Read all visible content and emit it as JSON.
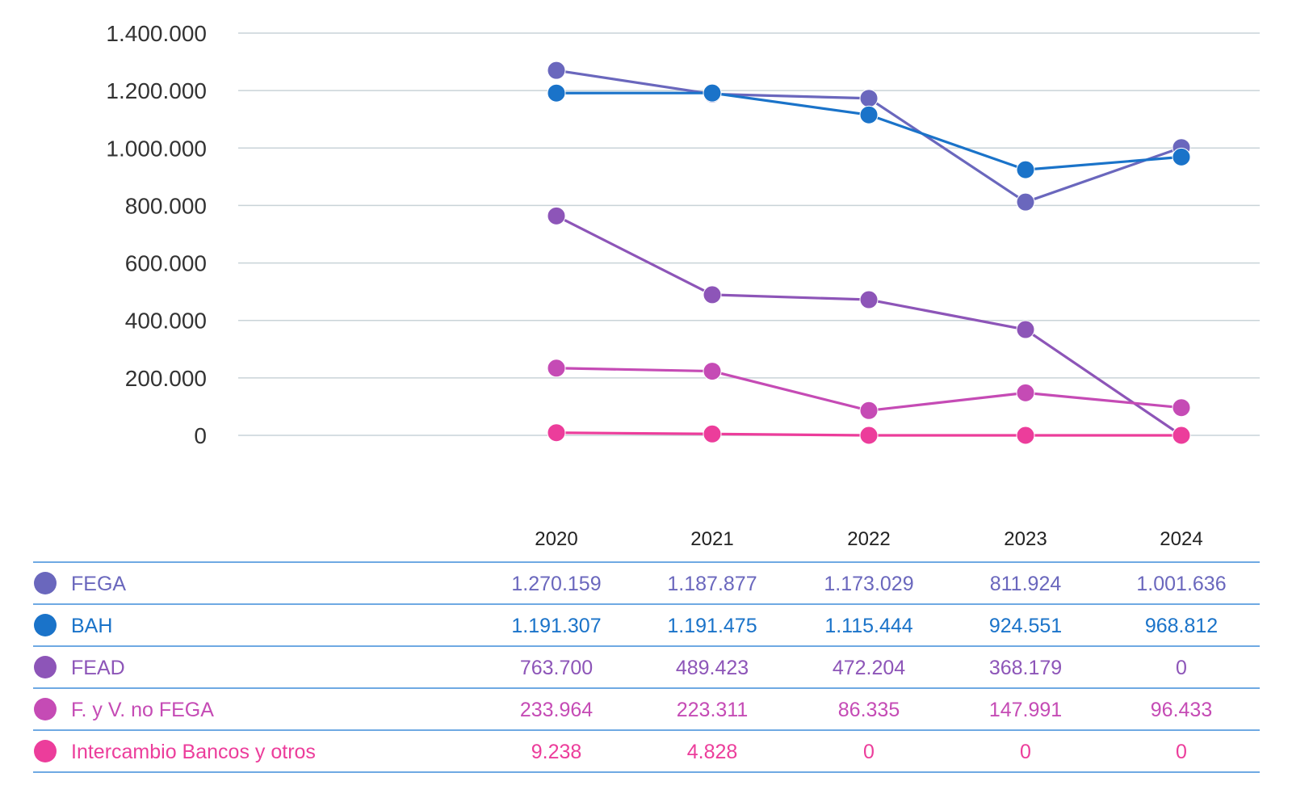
{
  "chart_data": {
    "type": "line",
    "title": "",
    "xlabel": "",
    "ylabel": "",
    "categories": [
      "2020",
      "2021",
      "2022",
      "2023",
      "2024"
    ],
    "y_ticks": [
      "0",
      "200.000",
      "400.000",
      "600.000",
      "800.000",
      "1.000.000",
      "1.200.000",
      "1.400.000"
    ],
    "ylim": [
      0,
      1400000
    ],
    "grid": true,
    "legend": "table-below",
    "series": [
      {
        "name": "FEGA",
        "color": "#6a67bd",
        "values": [
          1270159,
          1187877,
          1173029,
          811924,
          1001636
        ],
        "labels": [
          "1.270.159",
          "1.187.877",
          "1.173.029",
          "811.924",
          "1.001.636"
        ]
      },
      {
        "name": "BAH",
        "color": "#1a73c9",
        "values": [
          1191307,
          1191475,
          1115444,
          924551,
          968812
        ],
        "labels": [
          "1.191.307",
          "1.191.475",
          "1.115.444",
          "924.551",
          "968.812"
        ]
      },
      {
        "name": "FEAD",
        "color": "#8d55b8",
        "values": [
          763700,
          489423,
          472204,
          368179,
          0
        ],
        "labels": [
          "763.700",
          "489.423",
          "472.204",
          "368.179",
          "0"
        ]
      },
      {
        "name": "F. y V. no FEGA",
        "color": "#c54bb5",
        "values": [
          233964,
          223311,
          86335,
          147991,
          96433
        ],
        "labels": [
          "233.964",
          "223.311",
          "86.335",
          "147.991",
          "96.433"
        ]
      },
      {
        "name": "Intercambio Bancos y otros",
        "color": "#ec3d9b",
        "values": [
          9238,
          4828,
          0,
          0,
          0
        ],
        "labels": [
          "9.238",
          "4.828",
          "0",
          "0",
          "0"
        ]
      }
    ]
  }
}
